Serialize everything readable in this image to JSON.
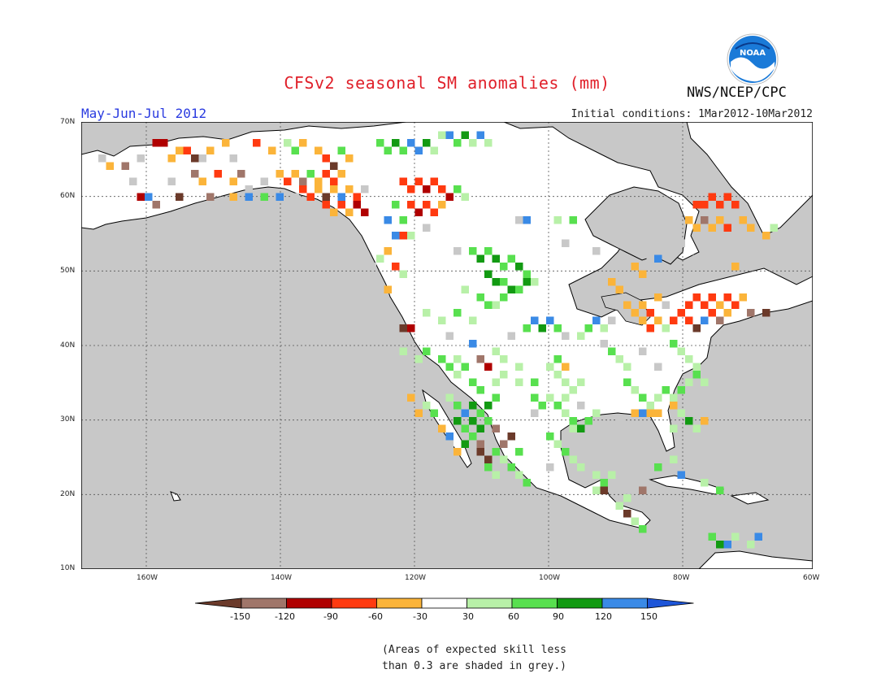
{
  "title": "CFSv2 seasonal SM anomalies (mm)",
  "agency": "NWS/NCEP/CPC",
  "logo_text": "NOAA",
  "period": "May-Jun-Jul 2012",
  "initial_conditions": "Initial conditions: 1Mar2012-10Mar2012",
  "lat_labels": [
    "70N",
    "60N",
    "50N",
    "40N",
    "30N",
    "20N",
    "10N"
  ],
  "lon_labels": [
    "160W",
    "140W",
    "120W",
    "100W",
    "80W",
    "60W"
  ],
  "colorbar": {
    "tick_labels": [
      "-150",
      "-120",
      "-90",
      "-60",
      "-30",
      "30",
      "60",
      "90",
      "120",
      "150"
    ],
    "colors": [
      "#6b3a2a",
      "#a0766a",
      "#b00000",
      "#ff3a10",
      "#fbb43a",
      "#ffffff",
      "#b8f0a8",
      "#58e04f",
      "#129a12",
      "#3a8ae6",
      "#1d55d8"
    ]
  },
  "note_line1": "(Areas of expected skill less",
  "note_line2": "than 0.3 are shaded in grey.)",
  "colors": {
    "ocean": "#c8c8c8",
    "land": "#ffffff",
    "title": "#e0202a",
    "period": "#2a3be0"
  }
}
